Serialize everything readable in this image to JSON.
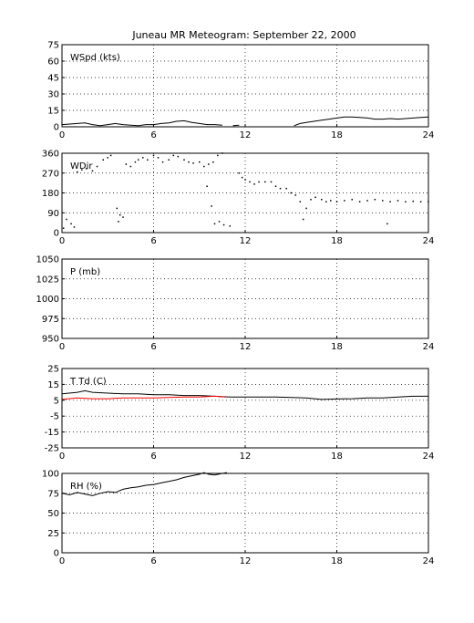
{
  "chart_data": {
    "type": "line",
    "title": "Juneau MR Meteogram: September 22, 2000",
    "grid": true,
    "panels": [
      {
        "name": "wspd",
        "label": "WSpd (kts)",
        "ylim": [
          0,
          75
        ],
        "yticks": [
          0,
          15,
          30,
          45,
          60,
          75
        ],
        "xlim": [
          0,
          24
        ],
        "xticks": [
          0,
          6,
          12,
          18,
          24
        ],
        "series": [
          {
            "color": "#000000",
            "style": "line",
            "points": [
              [
                0,
                2
              ],
              [
                0.5,
                2.5
              ],
              [
                1,
                3
              ],
              [
                1.5,
                3.5
              ],
              [
                2,
                2
              ],
              [
                2.5,
                1
              ],
              [
                3,
                2
              ],
              [
                3.5,
                3
              ],
              [
                4,
                2
              ],
              [
                4.5,
                1.5
              ],
              [
                5,
                1
              ],
              [
                5.5,
                2
              ],
              [
                6,
                2
              ],
              [
                6.5,
                3
              ],
              [
                7,
                3.5
              ],
              [
                7.5,
                5
              ],
              [
                8,
                5.5
              ],
              [
                8.5,
                4
              ],
              [
                9,
                3
              ],
              [
                9.5,
                2
              ],
              [
                10,
                2
              ],
              [
                10.5,
                1.5
              ]
            ]
          },
          {
            "color": "#000000",
            "style": "line",
            "points": [
              [
                11.2,
                1
              ],
              [
                11.6,
                1.5
              ]
            ]
          },
          {
            "color": "#000000",
            "style": "line",
            "points": [
              [
                15.2,
                1
              ],
              [
                15.6,
                3
              ],
              [
                16,
                4
              ],
              [
                16.5,
                5
              ],
              [
                17,
                6
              ],
              [
                17.5,
                7
              ],
              [
                18,
                8
              ],
              [
                18.5,
                9
              ],
              [
                19,
                9
              ],
              [
                19.5,
                8.5
              ],
              [
                20,
                8
              ],
              [
                20.5,
                7
              ],
              [
                21,
                7
              ],
              [
                21.5,
                7.5
              ],
              [
                22,
                7
              ],
              [
                22.5,
                7.5
              ],
              [
                23,
                8
              ],
              [
                23.5,
                8.5
              ],
              [
                24,
                9
              ]
            ]
          }
        ]
      },
      {
        "name": "wdir",
        "label": "WDir",
        "ylim": [
          0,
          360
        ],
        "yticks": [
          0,
          90,
          180,
          270,
          360
        ],
        "xlim": [
          0,
          24
        ],
        "xticks": [
          0,
          6,
          12,
          18,
          24
        ],
        "series": [
          {
            "color": "#000000",
            "style": "dots",
            "points": [
              [
                0.1,
                20
              ],
              [
                0.3,
                60
              ],
              [
                0.6,
                40
              ],
              [
                0.8,
                25
              ],
              [
                1,
                275
              ],
              [
                1.3,
                285
              ],
              [
                1.6,
                290
              ],
              [
                2,
                280
              ],
              [
                2.3,
                300
              ],
              [
                2.7,
                330
              ],
              [
                3,
                340
              ],
              [
                3.2,
                350
              ],
              [
                3.6,
                110
              ],
              [
                3.7,
                50
              ],
              [
                3.8,
                80
              ],
              [
                4,
                70
              ],
              [
                4.2,
                310
              ],
              [
                4.5,
                300
              ],
              [
                4.8,
                320
              ],
              [
                5,
                330
              ],
              [
                5.3,
                340
              ],
              [
                5.6,
                330
              ],
              [
                6,
                350
              ],
              [
                6.3,
                340
              ],
              [
                6.6,
                320
              ],
              [
                7,
                330
              ],
              [
                7.3,
                350
              ],
              [
                7.6,
                345
              ],
              [
                8,
                330
              ],
              [
                8.3,
                320
              ],
              [
                8.6,
                315
              ],
              [
                9,
                320
              ],
              [
                9.3,
                300
              ],
              [
                9.6,
                310
              ],
              [
                9.9,
                320
              ],
              [
                10.2,
                350
              ],
              [
                10.5,
                360
              ],
              [
                9.5,
                210
              ],
              [
                9.8,
                120
              ],
              [
                10,
                40
              ],
              [
                10.3,
                50
              ],
              [
                10.6,
                35
              ],
              [
                11,
                30
              ],
              [
                11.6,
                270
              ],
              [
                11.8,
                250
              ],
              [
                12,
                240
              ],
              [
                12.3,
                230
              ],
              [
                12.6,
                220
              ],
              [
                12.9,
                230
              ],
              [
                13.3,
                230
              ],
              [
                13.7,
                230
              ],
              [
                14,
                210
              ],
              [
                14.3,
                200
              ],
              [
                14.7,
                200
              ],
              [
                15,
                180
              ],
              [
                15.3,
                170
              ],
              [
                15.6,
                140
              ],
              [
                15.8,
                60
              ],
              [
                16,
                110
              ],
              [
                16.3,
                150
              ],
              [
                16.6,
                160
              ],
              [
                17,
                150
              ],
              [
                17.3,
                140
              ],
              [
                17.6,
                145
              ],
              [
                18,
                140
              ],
              [
                18.5,
                145
              ],
              [
                19,
                150
              ],
              [
                19.5,
                140
              ],
              [
                20,
                145
              ],
              [
                20.5,
                150
              ],
              [
                21,
                145
              ],
              [
                21.3,
                40
              ],
              [
                21.5,
                140
              ],
              [
                22,
                145
              ],
              [
                22.5,
                140
              ],
              [
                23,
                142
              ],
              [
                23.5,
                140
              ],
              [
                24,
                140
              ]
            ]
          }
        ]
      },
      {
        "name": "pres",
        "label": "P (mb)",
        "ylim": [
          950,
          1050
        ],
        "yticks": [
          950,
          975,
          1000,
          1025,
          1050
        ],
        "xlim": [
          0,
          24
        ],
        "xticks": [
          0,
          6,
          12,
          18,
          24
        ],
        "series": []
      },
      {
        "name": "temp",
        "label": "T Td (C)",
        "ylim": [
          -25,
          25
        ],
        "yticks": [
          -25,
          -15,
          -5,
          5,
          15,
          25
        ],
        "xlim": [
          0,
          24
        ],
        "xticks": [
          0,
          6,
          12,
          18,
          24
        ],
        "series": [
          {
            "color": "#000000",
            "style": "line",
            "points": [
              [
                0,
                9
              ],
              [
                1,
                10
              ],
              [
                1.5,
                11
              ],
              [
                2,
                10
              ],
              [
                3,
                9.5
              ],
              [
                4,
                9
              ],
              [
                5,
                9
              ],
              [
                6,
                8.5
              ],
              [
                7,
                8.5
              ],
              [
                8,
                8
              ],
              [
                9,
                8
              ],
              [
                10,
                7.5
              ],
              [
                11,
                7
              ],
              [
                12,
                7
              ],
              [
                13,
                7
              ],
              [
                14,
                7
              ],
              [
                15,
                6.8
              ],
              [
                16,
                6.5
              ],
              [
                17,
                5.5
              ],
              [
                18,
                5.8
              ],
              [
                19,
                6
              ],
              [
                20,
                6.5
              ],
              [
                21,
                6.5
              ],
              [
                22,
                7
              ],
              [
                23,
                7.5
              ],
              [
                24,
                7.5
              ]
            ]
          },
          {
            "color": "#ff0000",
            "style": "line",
            "points": [
              [
                0,
                5.5
              ],
              [
                1,
                6.5
              ],
              [
                2,
                6
              ],
              [
                3,
                6
              ],
              [
                4,
                6.5
              ],
              [
                5,
                6.5
              ],
              [
                6,
                6.5
              ],
              [
                7,
                6.8
              ],
              [
                8,
                7
              ],
              [
                9,
                7
              ],
              [
                10,
                7.5
              ],
              [
                10.7,
                7
              ]
            ]
          }
        ]
      },
      {
        "name": "rh",
        "label": "RH (%)",
        "ylim": [
          0,
          100
        ],
        "yticks": [
          0,
          25,
          50,
          75,
          100
        ],
        "xlim": [
          0,
          24
        ],
        "xticks": [
          0,
          6,
          12,
          18,
          24
        ],
        "series": [
          {
            "color": "#000000",
            "style": "line",
            "points": [
              [
                0,
                75
              ],
              [
                0.5,
                73
              ],
              [
                1,
                76
              ],
              [
                1.5,
                74
              ],
              [
                2,
                72
              ],
              [
                2.5,
                75
              ],
              [
                3,
                77
              ],
              [
                3.5,
                76
              ],
              [
                4,
                80
              ],
              [
                4.5,
                82
              ],
              [
                5,
                83
              ],
              [
                5.5,
                85
              ],
              [
                6,
                86
              ],
              [
                6.5,
                88
              ],
              [
                7,
                90
              ],
              [
                7.5,
                92
              ],
              [
                8,
                95
              ],
              [
                8.5,
                97
              ],
              [
                9,
                99
              ],
              [
                9.3,
                101
              ],
              [
                9.6,
                99
              ],
              [
                10,
                98
              ],
              [
                10.5,
                100
              ],
              [
                10.8,
                101
              ]
            ]
          }
        ]
      }
    ]
  }
}
